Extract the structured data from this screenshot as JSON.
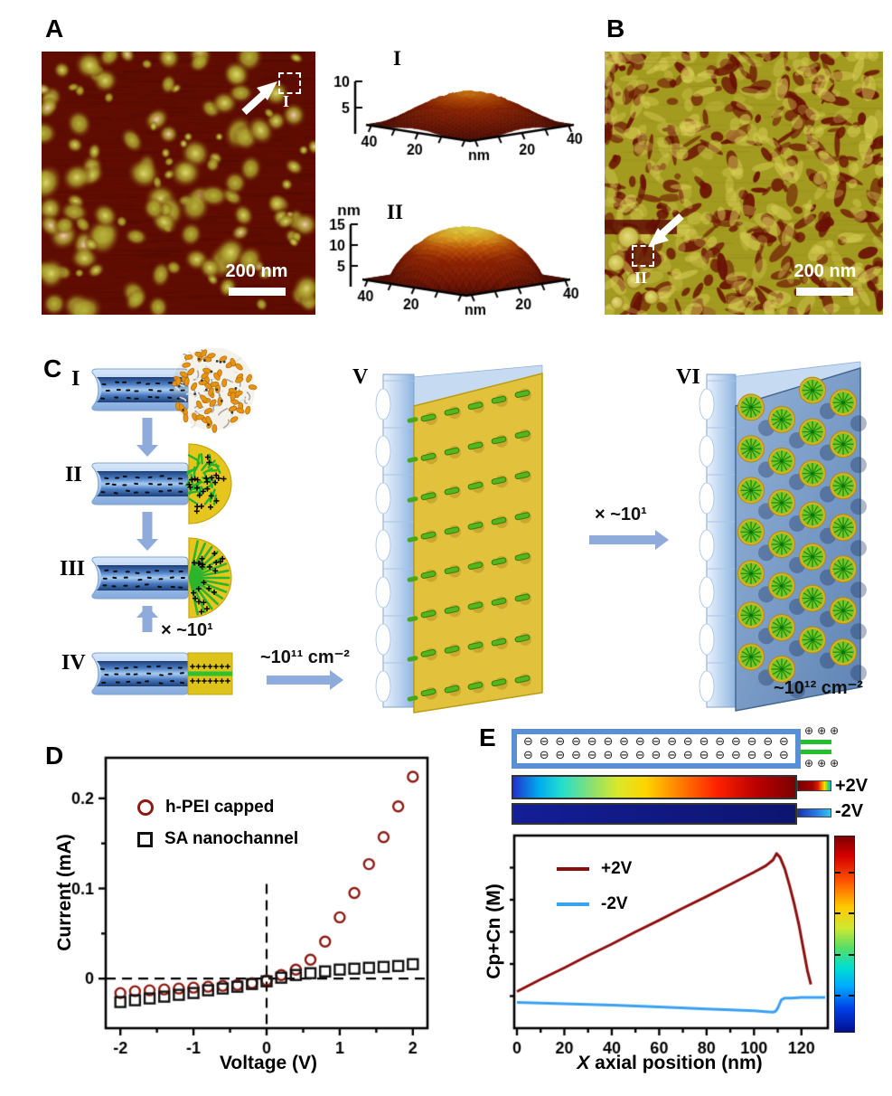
{
  "panel_a": {
    "label": "A",
    "scale_bar": "200 nm",
    "inset_label": "I"
  },
  "panel_b": {
    "label": "B",
    "scale_bar": "200 nm",
    "inset_label": "II"
  },
  "panel_c": {
    "label": "C",
    "step_labels": [
      "I",
      "II",
      "III",
      "IV",
      "V",
      "VI"
    ],
    "cycle_label_1": "× ~10¹",
    "density_label_1": "~10¹¹ cm⁻²",
    "cycle_label_2": "× ~10¹",
    "density_label_2": "~10¹² cm⁻²"
  },
  "panel_d": {
    "label": "D",
    "xlabel": "Voltage (V)",
    "ylabel": "Current (mA)"
  },
  "panel_e": {
    "label": "E",
    "xlabel_italic": "X",
    "xlabel_rest": " axial position (nm)",
    "ylabel": "Cp+Cn (M)",
    "plus_voltage_label": "+2V",
    "minus_voltage_label": "-2V",
    "minus_symbol": "⊖",
    "plus_symbol": "⊕",
    "minus_per_row": 17,
    "plus_per_row": 3
  },
  "colors": {
    "afm_background_red": "#5f0d02",
    "afm_spot_yellow": "#dcd96a",
    "afm_b_olive": "#a39a20",
    "schematic_blue": "#9dbde8",
    "arrow_blue": "#8fabdc",
    "cap_yellow": "#e6c51f",
    "brush_green": "#2db42d",
    "series_red": "#8b1a12",
    "series_black": "#111111",
    "line_red": "#8b0e0e",
    "line_blue": "#3aa0f0"
  },
  "chart_data": [
    {
      "id": "surface_inset_I",
      "type": "surface",
      "title": "I",
      "z_unit": "",
      "z_ticks": [
        5,
        10
      ],
      "z_max": 10,
      "edge_ticks_left": [
        "40",
        "20"
      ],
      "edge_ticks_right": [
        "20",
        "40"
      ],
      "corner_unit": "nm",
      "peak_height_nm": 6
    },
    {
      "id": "surface_inset_II",
      "type": "surface",
      "title": "II",
      "z_unit": "nm",
      "z_ticks": [
        5,
        10,
        15
      ],
      "z_max": 15,
      "edge_ticks_left": [
        "40",
        "20"
      ],
      "edge_ticks_right": [
        "20",
        "40"
      ],
      "corner_unit": "nm",
      "peak_height_nm": 12.5
    },
    {
      "id": "iv_curves",
      "type": "scatter",
      "xlabel": "Voltage (V)",
      "ylabel": "Current (mA)",
      "xlim": [
        -2.2,
        2.2
      ],
      "ylim": [
        -0.055,
        0.245
      ],
      "x_ticks": [
        -2,
        -1,
        0,
        1,
        2
      ],
      "y_ticks": [
        0,
        0.1,
        0.2
      ],
      "x_minor_ticks": [
        -1.5,
        -0.5,
        0.5,
        1.5
      ],
      "y_minor_ticks": [
        0.05,
        0.15
      ],
      "zero_lines": "dashed",
      "series": [
        {
          "name": "h-PEI capped",
          "marker": "circle",
          "color": "#8b1a12",
          "x": [
            -2,
            -1.8,
            -1.6,
            -1.4,
            -1.2,
            -1,
            -0.8,
            -0.6,
            -0.4,
            -0.2,
            0,
            0.2,
            0.4,
            0.6,
            0.8,
            1,
            1.2,
            1.4,
            1.6,
            1.8,
            2
          ],
          "y": [
            -0.016,
            -0.014,
            -0.013,
            -0.012,
            -0.011,
            -0.01,
            -0.009,
            -0.008,
            -0.007,
            -0.005,
            -0.002,
            0.004,
            0.01,
            0.021,
            0.041,
            0.068,
            0.095,
            0.127,
            0.157,
            0.191,
            0.224
          ]
        },
        {
          "name": "SA nanochannel",
          "marker": "square",
          "color": "#111111",
          "x": [
            -2,
            -1.8,
            -1.6,
            -1.4,
            -1.2,
            -1,
            -0.8,
            -0.6,
            -0.4,
            -0.2,
            0,
            0.2,
            0.4,
            0.6,
            0.8,
            1,
            1.2,
            1.4,
            1.6,
            1.8,
            2
          ],
          "y": [
            -0.026,
            -0.024,
            -0.022,
            -0.02,
            -0.018,
            -0.016,
            -0.013,
            -0.011,
            -0.009,
            -0.006,
            -0.003,
            0.001,
            0.004,
            0.006,
            0.008,
            0.01,
            0.011,
            0.012,
            0.013,
            0.014,
            0.016
          ]
        }
      ]
    },
    {
      "id": "concentration_profiles",
      "type": "line",
      "xlabel": "X axial position (nm)",
      "ylabel": "Cp+Cn (M)",
      "xlim": [
        0,
        130
      ],
      "ylim": [
        0,
        0.3
      ],
      "x_ticks": [
        0,
        20,
        40,
        60,
        80,
        100,
        120
      ],
      "series": [
        {
          "name": "+2V",
          "color": "#8b0e0e",
          "x": [
            0,
            10,
            20,
            30,
            40,
            50,
            60,
            70,
            80,
            90,
            100,
            105,
            108,
            109.5,
            111,
            113,
            115,
            117,
            119,
            121,
            122.5,
            124
          ],
          "y": [
            0.057,
            0.076,
            0.094,
            0.113,
            0.131,
            0.15,
            0.168,
            0.187,
            0.205,
            0.224,
            0.243,
            0.253,
            0.262,
            0.272,
            0.266,
            0.248,
            0.222,
            0.193,
            0.16,
            0.12,
            0.09,
            0.068
          ]
        },
        {
          "name": "-2V",
          "color": "#3aa0f0",
          "x": [
            0,
            20,
            40,
            60,
            80,
            100,
            106,
            108,
            109,
            110,
            111.5,
            113,
            116,
            120,
            124,
            128,
            130
          ],
          "y": [
            0.04,
            0.038,
            0.036,
            0.033,
            0.03,
            0.027,
            0.0255,
            0.025,
            0.026,
            0.031,
            0.044,
            0.047,
            0.047,
            0.048,
            0.048,
            0.048,
            0.048
          ]
        }
      ]
    }
  ]
}
